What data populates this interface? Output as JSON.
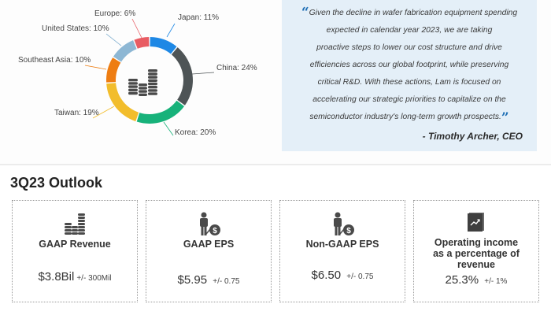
{
  "chart_data": {
    "type": "pie",
    "variant": "donut",
    "title": "",
    "categories": [
      "Japan",
      "China",
      "Korea",
      "Taiwan",
      "Southeast Asia",
      "United States",
      "Europe"
    ],
    "values": [
      11,
      24,
      20,
      19,
      10,
      10,
      6
    ],
    "unit": "%",
    "colors": [
      "#1e88e5",
      "#4e5456",
      "#17b27a",
      "#f2bd2c",
      "#ee7d12",
      "#8db7d4",
      "#e85c63"
    ],
    "labels": [
      "Japan: 11%",
      "China: 24%",
      "Korea: 20%",
      "Taiwan: 19%",
      "Southeast Asia: 10%",
      "United States: 10%",
      "Europe: 6%"
    ],
    "center_icon": "coin-stacks-icon",
    "legend": "callout labels"
  },
  "quote": {
    "text": "Given the decline in wafer fabrication equipment spending expected in calendar year 2023, we are taking proactive steps to lower our cost structure and drive efficiencies across our global footprint, while preserving critical R&D. With these actions, Lam is focused on accelerating our strategic priorities to capitalize on the semiconductor industry's long-term growth prospects.",
    "lines": [
      "Given the decline in wafer fabrication equipment spending",
      "expected in calendar year 2023, we are taking",
      "proactive steps to lower our cost structure and drive",
      "efficiencies across our global footprint, while preserving",
      "critical R&D. With these actions, Lam is focused on",
      "accelerating our strategic priorities to capitalize on the",
      "semiconductor industry's long-term growth prospects."
    ],
    "open_mark": "“",
    "close_mark": "”",
    "author": "- Timothy Archer, CEO"
  },
  "outlook": {
    "title": "3Q23 Outlook",
    "cards": [
      {
        "icon": "coin-stacks-icon",
        "title": "GAAP Revenue",
        "value": "$3.8Bil",
        "range": "+/- 300Mil"
      },
      {
        "icon": "person-dollar-icon",
        "title": "GAAP EPS",
        "value": "$5.95",
        "range": "+/- 0.75"
      },
      {
        "icon": "person-dollar-icon",
        "title": "Non-GAAP EPS",
        "value": "$6.50",
        "range": "+/- 0.75"
      },
      {
        "icon": "trend-report-icon",
        "title_line1": "Operating income",
        "title_line2": "as a percentage of revenue",
        "value": "25.3%",
        "range": "+/- 1%"
      }
    ]
  }
}
